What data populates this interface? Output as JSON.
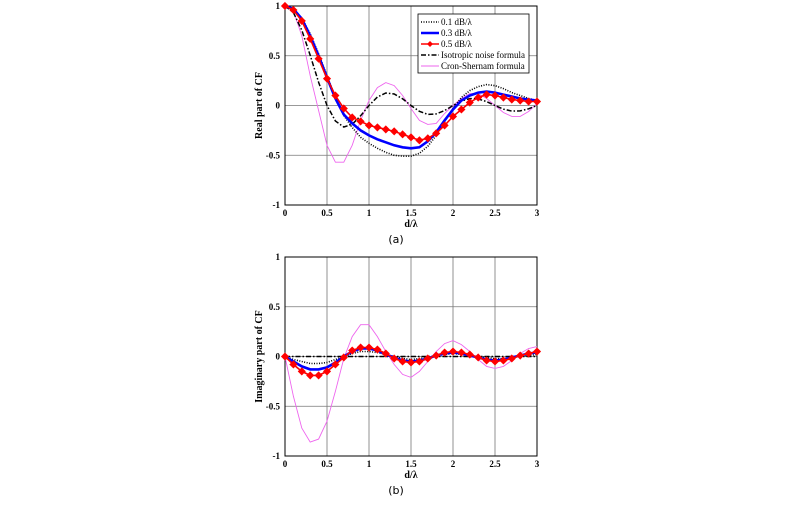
{
  "chart_data": [
    {
      "type": "line",
      "caption": "(a)",
      "xlabel": "d/λ",
      "ylabel": "Real part of CF",
      "xlim": [
        0,
        3
      ],
      "ylim": [
        -1,
        1
      ],
      "xticks": [
        "0",
        "0.5",
        "1",
        "1.5",
        "2",
        "2.5",
        "3"
      ],
      "yticks": [
        "-1",
        "-0.5",
        "0",
        "0.5",
        "1"
      ],
      "grid": true,
      "legend_placement": "top-right",
      "x": [
        0,
        0.1,
        0.2,
        0.3,
        0.4,
        0.5,
        0.6,
        0.7,
        0.8,
        0.9,
        1.0,
        1.1,
        1.2,
        1.3,
        1.4,
        1.5,
        1.6,
        1.7,
        1.8,
        1.9,
        2.0,
        2.1,
        2.2,
        2.3,
        2.4,
        2.5,
        2.6,
        2.7,
        2.8,
        2.9,
        3.0
      ],
      "series": [
        {
          "name": "0.1 dB/λ",
          "color": "#000000",
          "style": "dotted",
          "values": [
            1,
            0.97,
            0.88,
            0.72,
            0.52,
            0.3,
            0.08,
            -0.1,
            -0.22,
            -0.32,
            -0.38,
            -0.43,
            -0.47,
            -0.5,
            -0.51,
            -0.51,
            -0.48,
            -0.41,
            -0.3,
            -0.16,
            -0.03,
            0.08,
            0.15,
            0.19,
            0.21,
            0.2,
            0.17,
            0.13,
            0.1,
            0.07,
            0.05
          ]
        },
        {
          "name": "0.3 dB/λ",
          "color": "#0000ff",
          "style": "solid-thick",
          "values": [
            1,
            0.97,
            0.87,
            0.7,
            0.5,
            0.28,
            0.07,
            -0.09,
            -0.18,
            -0.25,
            -0.3,
            -0.34,
            -0.37,
            -0.4,
            -0.42,
            -0.43,
            -0.42,
            -0.36,
            -0.27,
            -0.15,
            -0.04,
            0.05,
            0.1,
            0.13,
            0.14,
            0.13,
            0.11,
            0.09,
            0.07,
            0.06,
            0.05
          ]
        },
        {
          "name": "0.5 dB/λ",
          "color": "#ff0000",
          "style": "diamond-markers",
          "values": [
            1,
            0.96,
            0.85,
            0.67,
            0.47,
            0.27,
            0.1,
            -0.03,
            -0.12,
            -0.16,
            -0.2,
            -0.22,
            -0.24,
            -0.26,
            -0.29,
            -0.32,
            -0.35,
            -0.33,
            -0.28,
            -0.2,
            -0.11,
            -0.04,
            0.03,
            0.08,
            0.11,
            0.1,
            0.08,
            0.06,
            0.05,
            0.04,
            0.04
          ]
        },
        {
          "name": "Isotropic noise formula",
          "color": "#000000",
          "style": "dash-dot",
          "values": [
            1,
            0.935,
            0.757,
            0.505,
            0.234,
            0,
            -0.156,
            -0.216,
            -0.189,
            -0.104,
            0,
            0.085,
            0.126,
            0.116,
            0.067,
            0,
            -0.058,
            -0.089,
            -0.084,
            -0.051,
            0,
            0.045,
            0.069,
            0.066,
            0.039,
            0,
            -0.036,
            -0.056,
            -0.054,
            -0.033,
            0
          ]
        },
        {
          "name": "Cron-Shernam formula",
          "color": "#ee66ee",
          "style": "thin",
          "values": [
            1,
            0.95,
            0.7,
            0.3,
            -0.05,
            -0.4,
            -0.57,
            -0.57,
            -0.4,
            -0.15,
            0.05,
            0.18,
            0.23,
            0.2,
            0.1,
            -0.03,
            -0.15,
            -0.19,
            -0.18,
            -0.08,
            0,
            0.07,
            0.12,
            0.12,
            0.07,
            0,
            -0.07,
            -0.11,
            -0.11,
            -0.06,
            0.02
          ]
        }
      ]
    },
    {
      "type": "line",
      "caption": "(b)",
      "xlabel": "d/λ",
      "ylabel": "Imaginary part of CF",
      "xlim": [
        0,
        3
      ],
      "ylim": [
        -1,
        1
      ],
      "xticks": [
        "0",
        "0.5",
        "1",
        "1.5",
        "2",
        "2.5",
        "3"
      ],
      "yticks": [
        "-1",
        "-0.5",
        "0",
        "0.5",
        "1"
      ],
      "grid": true,
      "x": [
        0,
        0.1,
        0.2,
        0.3,
        0.4,
        0.5,
        0.6,
        0.7,
        0.8,
        0.9,
        1.0,
        1.1,
        1.2,
        1.3,
        1.4,
        1.5,
        1.6,
        1.7,
        1.8,
        1.9,
        2.0,
        2.1,
        2.2,
        2.3,
        2.4,
        2.5,
        2.6,
        2.7,
        2.8,
        2.9,
        3.0
      ],
      "series": [
        {
          "color": "#000000",
          "style": "dotted",
          "values": [
            0,
            -0.03,
            -0.05,
            -0.07,
            -0.07,
            -0.06,
            -0.03,
            0,
            0.03,
            0.05,
            0.05,
            0.04,
            0.02,
            0,
            -0.02,
            -0.03,
            -0.02,
            -0.01,
            0.01,
            0.02,
            0.03,
            0.02,
            0.01,
            0,
            -0.01,
            -0.02,
            -0.02,
            -0.01,
            0,
            0.01,
            0.02
          ]
        },
        {
          "color": "#0000ff",
          "style": "solid-thick",
          "values": [
            0,
            -0.05,
            -0.1,
            -0.13,
            -0.13,
            -0.11,
            -0.06,
            0,
            0.05,
            0.08,
            0.08,
            0.06,
            0.02,
            -0.01,
            -0.04,
            -0.05,
            -0.04,
            -0.02,
            0.01,
            0.03,
            0.04,
            0.03,
            0.01,
            -0.01,
            -0.03,
            -0.04,
            -0.03,
            -0.01,
            0.01,
            0.03,
            0.04
          ]
        },
        {
          "color": "#ff0000",
          "style": "diamond-markers",
          "values": [
            0,
            -0.08,
            -0.15,
            -0.19,
            -0.19,
            -0.15,
            -0.08,
            -0.01,
            0.06,
            0.09,
            0.09,
            0.07,
            0.03,
            -0.02,
            -0.05,
            -0.06,
            -0.05,
            -0.02,
            0.01,
            0.04,
            0.05,
            0.04,
            0.02,
            -0.01,
            -0.04,
            -0.05,
            -0.04,
            -0.02,
            0.01,
            0.03,
            0.05
          ]
        },
        {
          "color": "#000000",
          "style": "dash-dot",
          "values": [
            0,
            0,
            0,
            0,
            0,
            0,
            0,
            0,
            0,
            0,
            0,
            0,
            0,
            0,
            0,
            0,
            0,
            0,
            0,
            0,
            0,
            0,
            0,
            0,
            0,
            0,
            0,
            0,
            0,
            0,
            0
          ]
        },
        {
          "color": "#ee66ee",
          "style": "thin",
          "values": [
            0,
            -0.4,
            -0.72,
            -0.86,
            -0.83,
            -0.65,
            -0.35,
            -0.02,
            0.2,
            0.32,
            0.32,
            0.2,
            0.05,
            -0.08,
            -0.18,
            -0.21,
            -0.15,
            -0.05,
            0.05,
            0.13,
            0.16,
            0.12,
            0.05,
            -0.03,
            -0.1,
            -0.12,
            -0.1,
            -0.04,
            0.03,
            0.08,
            0.1
          ]
        }
      ]
    }
  ]
}
